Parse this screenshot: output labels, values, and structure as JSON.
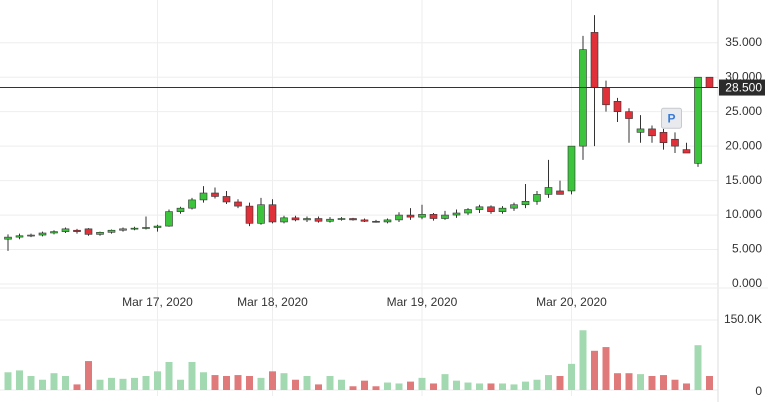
{
  "chart_data": {
    "type": "candlestick",
    "categories": [
      null,
      null,
      null,
      null,
      null,
      null,
      null,
      null,
      null,
      null,
      null,
      null,
      null,
      "Mar 17, 2020",
      null,
      null,
      null,
      null,
      null,
      null,
      null,
      null,
      null,
      "Mar 18, 2020",
      null,
      null,
      null,
      null,
      null,
      null,
      null,
      null,
      null,
      null,
      null,
      null,
      "Mar 19, 2020",
      null,
      null,
      null,
      null,
      null,
      null,
      null,
      null,
      null,
      null,
      null,
      null,
      "Mar 20, 2020",
      null,
      null,
      null,
      null,
      null,
      null,
      null,
      null,
      null,
      null,
      null,
      null
    ],
    "open": [
      6.5,
      6.8,
      7.0,
      7.1,
      7.4,
      7.6,
      7.8,
      8.0,
      7.2,
      7.5,
      7.8,
      8.0,
      8.1,
      8.2,
      8.4,
      10.5,
      11.0,
      12.2,
      13.2,
      12.7,
      11.9,
      11.3,
      8.8,
      11.5,
      9.0,
      9.6,
      9.3,
      9.5,
      9.1,
      9.4,
      9.5,
      9.3,
      9.1,
      9.0,
      9.3,
      10.0,
      9.7,
      10.1,
      9.5,
      10.0,
      10.3,
      10.8,
      11.2,
      10.5,
      11.0,
      11.5,
      12.0,
      13.0,
      13.5,
      13.5,
      20.0,
      36.5,
      28.5,
      26.5,
      25.0,
      22.0,
      22.5,
      22.0,
      21.0,
      19.5,
      17.5,
      30.0
    ],
    "high": [
      7.2,
      7.3,
      7.3,
      7.6,
      7.8,
      8.2,
      8.0,
      8.1,
      7.6,
      7.9,
      8.2,
      8.3,
      9.8,
      8.6,
      10.8,
      11.2,
      12.5,
      14.2,
      14.0,
      13.5,
      12.3,
      11.8,
      12.5,
      12.3,
      9.9,
      9.9,
      9.8,
      9.8,
      9.7,
      9.7,
      9.6,
      9.5,
      9.3,
      9.5,
      10.4,
      11.0,
      11.5,
      10.3,
      10.6,
      10.8,
      11.0,
      11.5,
      11.4,
      11.3,
      11.8,
      14.5,
      13.5,
      18.0,
      15.0,
      20.0,
      36.0,
      39.0,
      29.5,
      27.0,
      25.5,
      24.5,
      23.0,
      22.5,
      22.0,
      20.5,
      30.0,
      30.0
    ],
    "low": [
      4.8,
      6.5,
      6.8,
      6.9,
      7.2,
      7.4,
      7.3,
      7.0,
      7.0,
      7.3,
      7.6,
      7.8,
      7.9,
      7.6,
      8.3,
      10.2,
      10.8,
      11.8,
      12.4,
      11.6,
      11.0,
      8.4,
      8.6,
      8.8,
      8.8,
      9.1,
      9.0,
      8.9,
      8.9,
      9.2,
      9.2,
      9.0,
      8.9,
      8.8,
      9.0,
      9.3,
      9.4,
      9.2,
      9.3,
      9.6,
      10.0,
      10.3,
      10.2,
      10.2,
      10.6,
      11.0,
      11.5,
      12.5,
      13.0,
      13.0,
      18.0,
      20.0,
      25.0,
      23.5,
      20.5,
      20.5,
      20.5,
      19.5,
      19.0,
      19.0,
      17.0,
      28.5
    ],
    "close": [
      6.8,
      7.0,
      7.1,
      7.4,
      7.6,
      8.0,
      7.6,
      7.2,
      7.5,
      7.8,
      8.0,
      8.1,
      8.2,
      8.4,
      10.5,
      11.0,
      12.2,
      13.2,
      12.7,
      11.9,
      11.3,
      8.8,
      11.5,
      9.0,
      9.6,
      9.3,
      9.5,
      9.1,
      9.4,
      9.5,
      9.3,
      9.1,
      9.0,
      9.3,
      10.0,
      9.7,
      10.1,
      9.5,
      10.0,
      10.3,
      10.8,
      11.2,
      10.5,
      11.0,
      11.5,
      12.0,
      13.0,
      14.0,
      13.0,
      20.0,
      34.0,
      28.5,
      26.0,
      25.0,
      24.0,
      22.5,
      21.5,
      20.5,
      20.0,
      19.0,
      30.0,
      28.5
    ],
    "volume": [
      38000,
      42000,
      30000,
      22000,
      36000,
      30000,
      12000,
      62000,
      22000,
      26000,
      24000,
      26000,
      30000,
      40000,
      60000,
      22000,
      60000,
      38000,
      32000,
      30000,
      32000,
      30000,
      26000,
      40000,
      36000,
      22000,
      30000,
      12000,
      30000,
      22000,
      8000,
      20000,
      8000,
      16000,
      14000,
      18000,
      26000,
      14000,
      34000,
      20000,
      16000,
      14000,
      14000,
      14000,
      12000,
      18000,
      22000,
      32000,
      30000,
      56000,
      128000,
      84000,
      92000,
      36000,
      36000,
      34000,
      30000,
      32000,
      22000,
      14000,
      96000,
      30000
    ],
    "up_color": "#3cc43c",
    "down_color": "#e0303a",
    "up_volume_color": "#a3d9b1",
    "down_volume_color": "#e07a7a",
    "ylim": [
      0,
      41.2
    ],
    "yticks": [
      {
        "value": 0,
        "label": "0.000"
      },
      {
        "value": 5,
        "label": "5.000"
      },
      {
        "value": 10,
        "label": "10.000"
      },
      {
        "value": 15,
        "label": "15.000"
      },
      {
        "value": 20,
        "label": "20.000"
      },
      {
        "value": 25,
        "label": "25.000"
      },
      {
        "value": 30,
        "label": "30.000"
      },
      {
        "value": 35,
        "label": "35.000"
      }
    ],
    "volume_lim": [
      0,
      150000
    ],
    "volume_ticks": [
      0,
      {
        "value": 150000,
        "label": "150.0K"
      }
    ],
    "last_price": {
      "value": 28.5,
      "label": "28.500"
    },
    "marker_label": "P",
    "grid": true
  }
}
